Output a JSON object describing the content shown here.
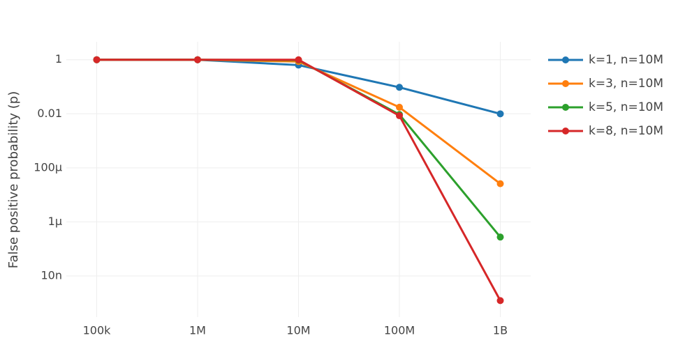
{
  "chart_data": {
    "type": "line",
    "y_label": "False positive probability (p)",
    "x": [
      100000,
      1000000,
      10000000,
      100000000,
      1000000000
    ],
    "series": [
      {
        "name": "k=1, n=10M",
        "color": "#1f77b4",
        "values": [
          1,
          0.99995,
          0.632,
          0.0952,
          0.00995
        ]
      },
      {
        "name": "k=3, n=10M",
        "color": "#ff7f0e",
        "values": [
          1,
          1,
          0.858,
          0.0174,
          2.58e-05
        ]
      },
      {
        "name": "k=5, n=10M",
        "color": "#2ca02c",
        "values": [
          1,
          1,
          0.967,
          0.00943,
          2.74e-07
        ]
      },
      {
        "name": "k=8, n=10M",
        "color": "#d62728",
        "values": [
          1,
          1,
          0.997,
          0.00848,
          1.22e-09
        ]
      }
    ],
    "xscale": "log",
    "yscale": "log",
    "xlim": [
      50000,
      2000000000
    ],
    "ylim": [
      3e-10,
      4.6
    ],
    "xticks": [
      {
        "value": 100000,
        "label": "100k"
      },
      {
        "value": 1000000,
        "label": "1M"
      },
      {
        "value": 10000000,
        "label": "10M"
      },
      {
        "value": 100000000,
        "label": "100M"
      },
      {
        "value": 1000000000,
        "label": "1B"
      }
    ],
    "yticks": [
      1,
      0.01,
      {
        "value": 0.0001,
        "label": "100µ"
      },
      {
        "value": 1e-06,
        "label": "1µ"
      },
      {
        "value": 1e-08,
        "label": "10n"
      }
    ],
    "grid": true,
    "legend": "right"
  }
}
